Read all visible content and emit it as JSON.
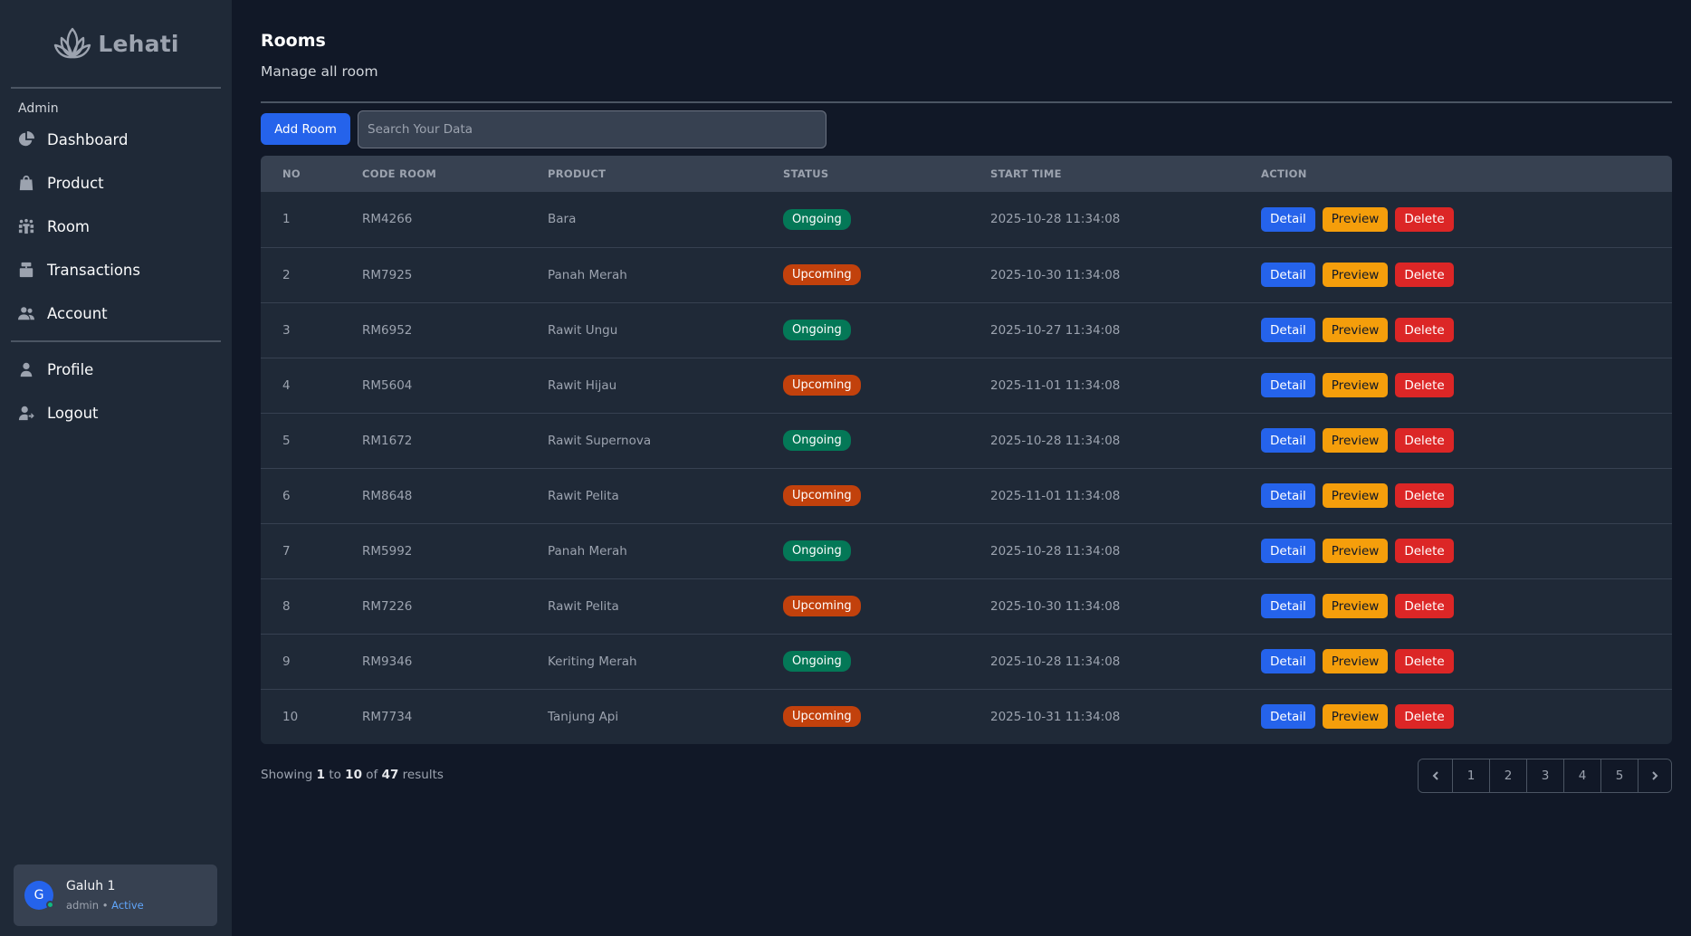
{
  "brand": {
    "name": "Lehati"
  },
  "sidebar": {
    "section_label": "Admin",
    "items": [
      {
        "label": "Dashboard",
        "icon": "chart-pie-icon"
      },
      {
        "label": "Product",
        "icon": "shopping-bag-icon"
      },
      {
        "label": "Room",
        "icon": "meeting-room-icon"
      },
      {
        "label": "Transactions",
        "icon": "cash-register-icon"
      },
      {
        "label": "Account",
        "icon": "users-icon"
      }
    ],
    "bottom_items": [
      {
        "label": "Profile",
        "icon": "user-icon"
      },
      {
        "label": "Logout",
        "icon": "user-logout-icon"
      }
    ]
  },
  "user": {
    "initial": "G",
    "name": "Galuh 1",
    "role": "admin",
    "separator": "•",
    "status": "Active"
  },
  "header": {
    "title": "Rooms",
    "subtitle": "Manage all room"
  },
  "toolbar": {
    "add_label": "Add Room",
    "search_placeholder": "Search Your Data"
  },
  "table": {
    "columns": [
      "NO",
      "CODE ROOM",
      "PRODUCT",
      "STATUS",
      "START TIME",
      "ACTION"
    ],
    "actions": {
      "detail": "Detail",
      "preview": "Preview",
      "delete": "Delete"
    },
    "rows": [
      {
        "no": "1",
        "code": "RM4266",
        "product": "Bara",
        "status": "Ongoing",
        "start": "2025-10-28 11:34:08"
      },
      {
        "no": "2",
        "code": "RM7925",
        "product": "Panah Merah",
        "status": "Upcoming",
        "start": "2025-10-30 11:34:08"
      },
      {
        "no": "3",
        "code": "RM6952",
        "product": "Rawit Ungu",
        "status": "Ongoing",
        "start": "2025-10-27 11:34:08"
      },
      {
        "no": "4",
        "code": "RM5604",
        "product": "Rawit Hijau",
        "status": "Upcoming",
        "start": "2025-11-01 11:34:08"
      },
      {
        "no": "5",
        "code": "RM1672",
        "product": "Rawit Supernova",
        "status": "Ongoing",
        "start": "2025-10-28 11:34:08"
      },
      {
        "no": "6",
        "code": "RM8648",
        "product": "Rawit Pelita",
        "status": "Upcoming",
        "start": "2025-11-01 11:34:08"
      },
      {
        "no": "7",
        "code": "RM5992",
        "product": "Panah Merah",
        "status": "Ongoing",
        "start": "2025-10-28 11:34:08"
      },
      {
        "no": "8",
        "code": "RM7226",
        "product": "Rawit Pelita",
        "status": "Upcoming",
        "start": "2025-10-30 11:34:08"
      },
      {
        "no": "9",
        "code": "RM9346",
        "product": "Keriting Merah",
        "status": "Ongoing",
        "start": "2025-10-28 11:34:08"
      },
      {
        "no": "10",
        "code": "RM7734",
        "product": "Tanjung Api",
        "status": "Upcoming",
        "start": "2025-10-31 11:34:08"
      }
    ]
  },
  "pagination": {
    "showing_prefix": "Showing",
    "from": "1",
    "to_word": "to",
    "to": "10",
    "of_word": "of",
    "total": "47",
    "results_word": "results",
    "pages": [
      "1",
      "2",
      "3",
      "4",
      "5"
    ]
  },
  "colors": {
    "background": "#111827",
    "sidebar": "#1f2937",
    "primary": "#2563eb",
    "warning": "#f59e0b",
    "danger": "#dc2626",
    "ongoing": "#047857",
    "upcoming": "#c2410c"
  }
}
